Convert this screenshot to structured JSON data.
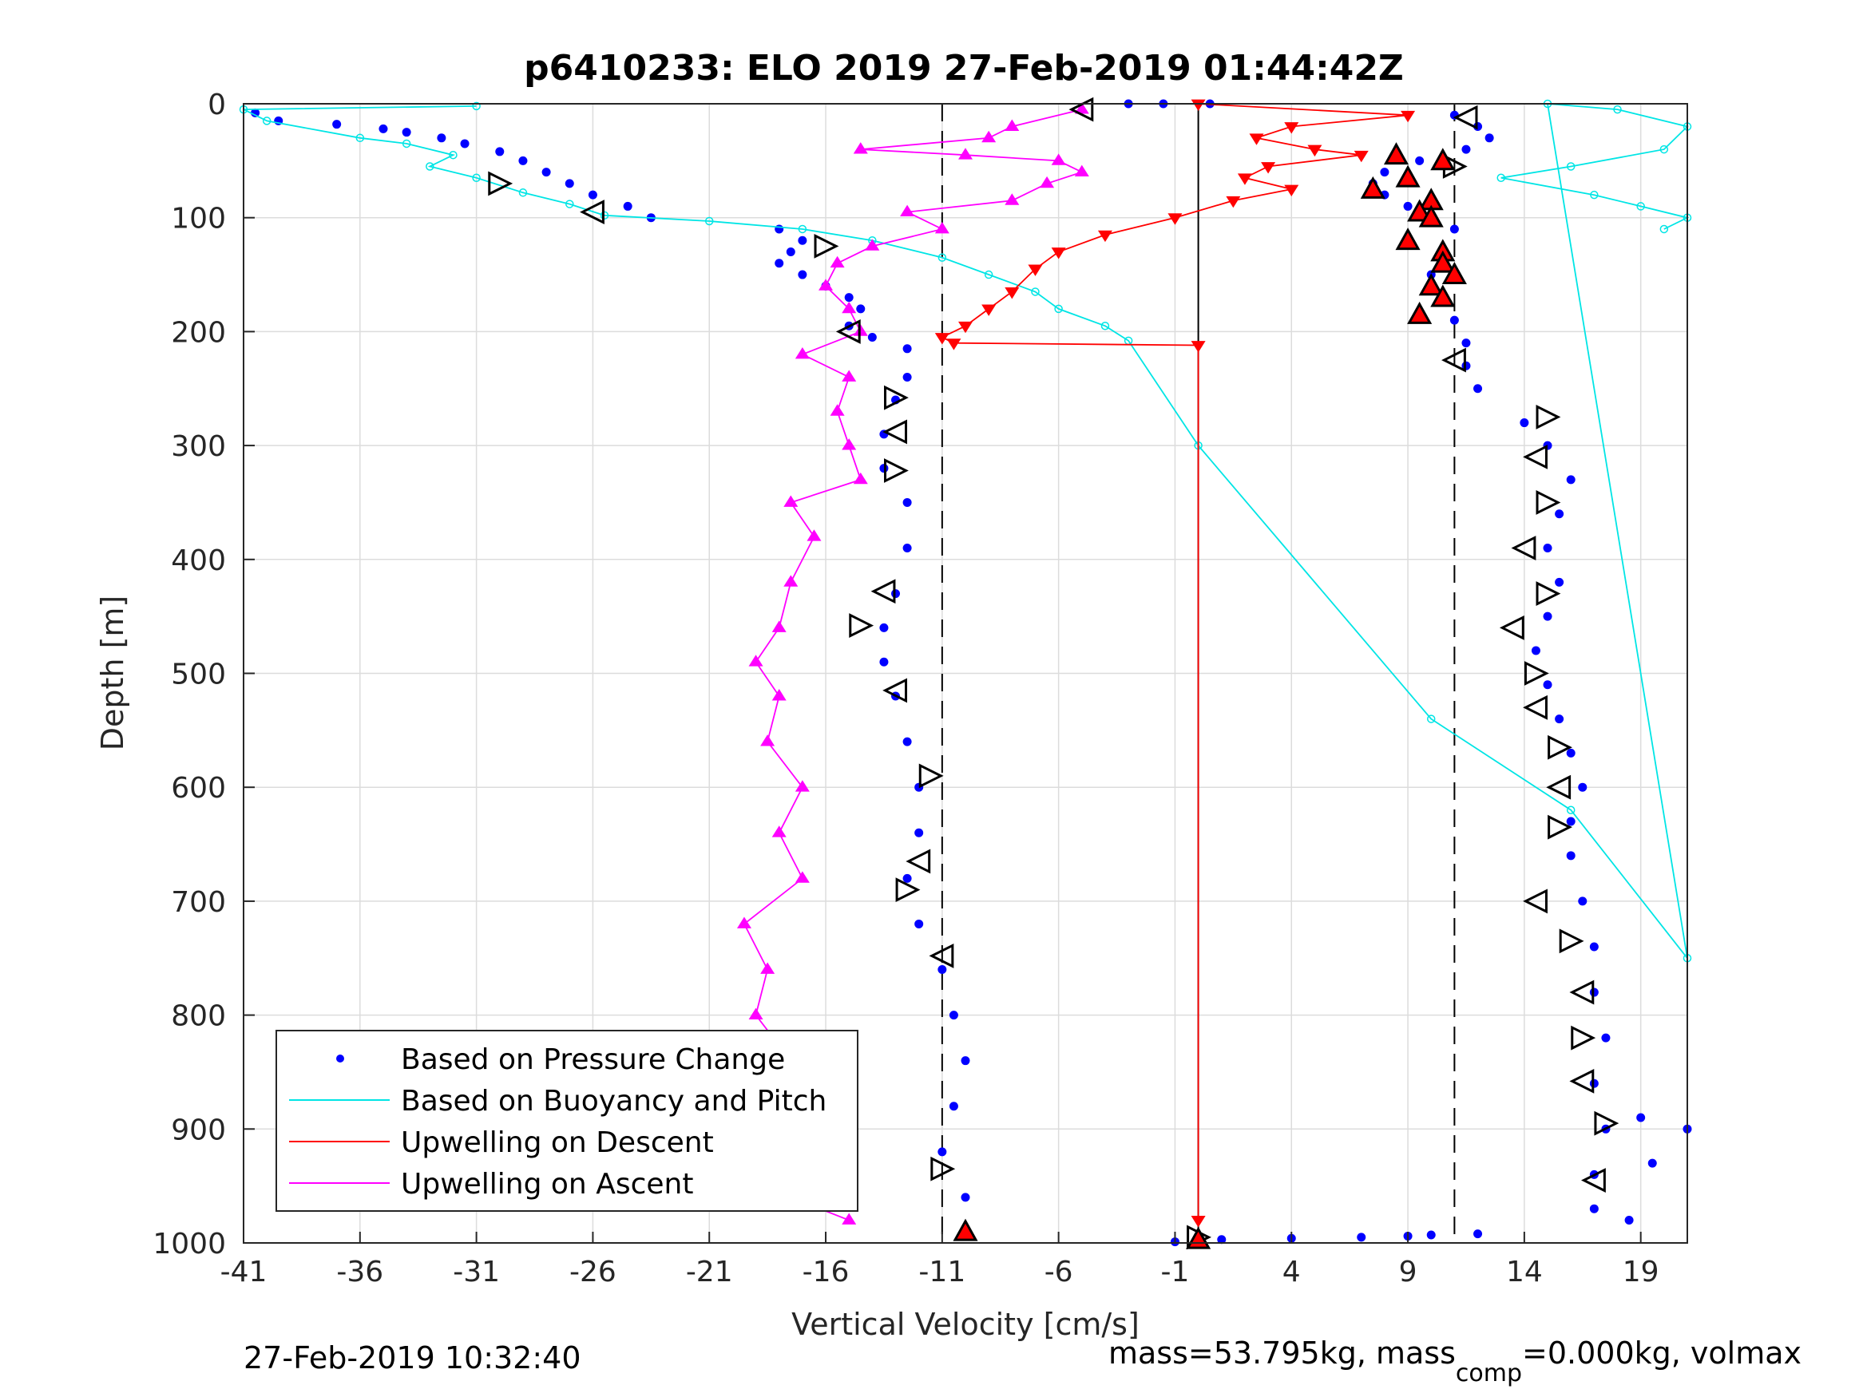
{
  "chart_data": {
    "type": "scatter",
    "title": "p6410233: ELO 2019 27-Feb-2019 01:44:42Z",
    "xlabel": "Vertical Velocity [cm/s]",
    "ylabel": "Depth [m]",
    "xlim": [
      -41,
      21
    ],
    "ylim": [
      0,
      1000
    ],
    "y_reversed": true,
    "xticks": [
      "-41",
      "-36",
      "-31",
      "-26",
      "-21",
      "-16",
      "-11",
      "-6",
      "-1",
      "4",
      "9",
      "14",
      "19"
    ],
    "xtick_values": [
      -41,
      -36,
      -31,
      -26,
      -21,
      -16,
      -11,
      -6,
      -1,
      4,
      9,
      14,
      19
    ],
    "yticks": [
      "0",
      "100",
      "200",
      "300",
      "400",
      "500",
      "600",
      "700",
      "800",
      "900",
      "1000"
    ],
    "ytick_values": [
      0,
      100,
      200,
      300,
      400,
      500,
      600,
      700,
      800,
      900,
      1000
    ],
    "grid": true,
    "legend_placement": "bottom-left",
    "reference_lines": [
      {
        "x": -11,
        "style": "dashed",
        "color": "#000000"
      },
      {
        "x": 11,
        "style": "dashed",
        "color": "#000000"
      },
      {
        "x": 0,
        "style": "solid",
        "color": "#000000"
      }
    ],
    "series": [
      {
        "name": "Based on Pressure Change",
        "style": "dots",
        "color": "#0000ff",
        "points": [
          [
            -40.5,
            8
          ],
          [
            -39.5,
            15
          ],
          [
            -37,
            18
          ],
          [
            -35,
            22
          ],
          [
            -34,
            25
          ],
          [
            -32.5,
            30
          ],
          [
            -31.5,
            35
          ],
          [
            -30,
            42
          ],
          [
            -29,
            50
          ],
          [
            -28,
            60
          ],
          [
            -27,
            70
          ],
          [
            -26,
            80
          ],
          [
            -24.5,
            90
          ],
          [
            -23.5,
            100
          ],
          [
            -18,
            110
          ],
          [
            -17,
            120
          ],
          [
            -17.5,
            130
          ],
          [
            -18,
            140
          ],
          [
            -17,
            150
          ],
          [
            -16,
            160
          ],
          [
            -15,
            170
          ],
          [
            -14.5,
            180
          ],
          [
            -15,
            195
          ],
          [
            -14,
            205
          ],
          [
            -12.5,
            215
          ],
          [
            -12.5,
            240
          ],
          [
            -13,
            260
          ],
          [
            -13.5,
            290
          ],
          [
            -13.5,
            320
          ],
          [
            -12.5,
            350
          ],
          [
            -12.5,
            390
          ],
          [
            -13,
            430
          ],
          [
            -13.5,
            460
          ],
          [
            -13.5,
            490
          ],
          [
            -13,
            520
          ],
          [
            -12.5,
            560
          ],
          [
            -12,
            600
          ],
          [
            -12,
            640
          ],
          [
            -12.5,
            680
          ],
          [
            -12,
            720
          ],
          [
            -11,
            760
          ],
          [
            -10.5,
            800
          ],
          [
            -10,
            840
          ],
          [
            -10.5,
            880
          ],
          [
            -11,
            920
          ],
          [
            -10,
            960
          ],
          [
            -10,
            990
          ],
          [
            -3,
            0
          ],
          [
            -1.5,
            0
          ],
          [
            0.5,
            0
          ],
          [
            -1,
            999
          ],
          [
            0,
            998
          ],
          [
            1,
            997
          ],
          [
            4,
            996
          ],
          [
            7,
            995
          ],
          [
            9,
            994
          ],
          [
            10,
            993
          ],
          [
            12,
            992
          ],
          [
            11,
            10
          ],
          [
            12,
            20
          ],
          [
            12.5,
            30
          ],
          [
            11.5,
            40
          ],
          [
            9.5,
            50
          ],
          [
            8,
            60
          ],
          [
            7.5,
            70
          ],
          [
            8,
            80
          ],
          [
            9,
            90
          ],
          [
            10,
            100
          ],
          [
            11,
            110
          ],
          [
            10.5,
            130
          ],
          [
            10,
            150
          ],
          [
            10.5,
            170
          ],
          [
            11,
            190
          ],
          [
            11.5,
            210
          ],
          [
            11.5,
            230
          ],
          [
            12,
            250
          ],
          [
            14,
            280
          ],
          [
            15,
            300
          ],
          [
            16,
            330
          ],
          [
            15.5,
            360
          ],
          [
            15,
            390
          ],
          [
            15.5,
            420
          ],
          [
            15,
            450
          ],
          [
            14.5,
            480
          ],
          [
            15,
            510
          ],
          [
            15.5,
            540
          ],
          [
            16,
            570
          ],
          [
            16.5,
            600
          ],
          [
            16,
            630
          ],
          [
            16,
            660
          ],
          [
            16.5,
            700
          ],
          [
            17,
            740
          ],
          [
            17,
            780
          ],
          [
            17.5,
            820
          ],
          [
            17,
            860
          ],
          [
            17.5,
            900
          ],
          [
            17,
            940
          ],
          [
            17,
            970
          ],
          [
            19,
            890
          ],
          [
            19.5,
            930
          ],
          [
            18.5,
            980
          ],
          [
            21,
            900
          ]
        ]
      },
      {
        "name": "Based on Buoyancy and Pitch",
        "style": "line",
        "color": "#00e5e5",
        "points": [
          [
            -31,
            2
          ],
          [
            -41,
            5
          ],
          [
            -40,
            15
          ],
          [
            -36,
            30
          ],
          [
            -34,
            35
          ],
          [
            -32,
            45
          ],
          [
            -33,
            55
          ],
          [
            -31,
            65
          ],
          [
            -29,
            78
          ],
          [
            -27,
            88
          ],
          [
            -25.5,
            98
          ],
          [
            -21,
            103
          ],
          [
            -17,
            110
          ],
          [
            -14,
            120
          ],
          [
            -11,
            135
          ],
          [
            -9,
            150
          ],
          [
            -7,
            165
          ],
          [
            -6,
            180
          ],
          [
            -4,
            195
          ],
          [
            -3,
            208
          ],
          [
            0,
            300
          ],
          [
            10,
            540
          ],
          [
            16,
            620
          ],
          [
            21,
            750
          ],
          [
            15,
            0
          ],
          [
            18,
            5
          ],
          [
            21,
            20
          ],
          [
            20,
            40
          ],
          [
            16,
            55
          ],
          [
            13,
            65
          ],
          [
            17,
            80
          ],
          [
            19,
            90
          ],
          [
            21,
            100
          ],
          [
            20,
            110
          ]
        ]
      },
      {
        "name": "Upwelling on Descent",
        "style": "line-triangle-down",
        "color": "#ff0000",
        "points": [
          [
            0,
            0
          ],
          [
            9,
            10
          ],
          [
            4,
            20
          ],
          [
            2.5,
            30
          ],
          [
            5,
            40
          ],
          [
            7,
            45
          ],
          [
            3,
            55
          ],
          [
            2,
            65
          ],
          [
            4,
            75
          ],
          [
            1.5,
            85
          ],
          [
            -1,
            100
          ],
          [
            -4,
            115
          ],
          [
            -6,
            130
          ],
          [
            -7,
            145
          ],
          [
            -8,
            165
          ],
          [
            -9,
            180
          ],
          [
            -10,
            195
          ],
          [
            -11,
            205
          ],
          [
            -10.5,
            210
          ],
          [
            0,
            212
          ],
          [
            0,
            980
          ]
        ]
      },
      {
        "name": "Upwelling on Ascent",
        "style": "line-triangle-up",
        "color": "#ff00ff",
        "points": [
          [
            -5,
            5
          ],
          [
            -8,
            20
          ],
          [
            -9,
            30
          ],
          [
            -14.5,
            40
          ],
          [
            -10,
            45
          ],
          [
            -6,
            50
          ],
          [
            -5,
            60
          ],
          [
            -6.5,
            70
          ],
          [
            -8,
            85
          ],
          [
            -12.5,
            95
          ],
          [
            -11,
            110
          ],
          [
            -14,
            125
          ],
          [
            -15.5,
            140
          ],
          [
            -16,
            160
          ],
          [
            -15,
            180
          ],
          [
            -14.5,
            200
          ],
          [
            -17,
            220
          ],
          [
            -15,
            240
          ],
          [
            -15.5,
            270
          ],
          [
            -15,
            300
          ],
          [
            -14.5,
            330
          ],
          [
            -17.5,
            350
          ],
          [
            -16.5,
            380
          ],
          [
            -17.5,
            420
          ],
          [
            -18,
            460
          ],
          [
            -19,
            490
          ],
          [
            -18,
            520
          ],
          [
            -18.5,
            560
          ],
          [
            -17,
            600
          ],
          [
            -18,
            640
          ],
          [
            -17,
            680
          ],
          [
            -19.5,
            720
          ],
          [
            -18.5,
            760
          ],
          [
            -19,
            800
          ],
          [
            -17.5,
            840
          ],
          [
            -17,
            880
          ],
          [
            -17.5,
            920
          ],
          [
            -17.5,
            960
          ],
          [
            -15,
            980
          ]
        ]
      }
    ],
    "markers": {
      "open_triangles": [
        [
          -5,
          5
        ],
        [
          -30,
          70
        ],
        [
          -26,
          95
        ],
        [
          -16,
          125
        ],
        [
          -15,
          200
        ],
        [
          -13,
          258
        ],
        [
          -13,
          288
        ],
        [
          -13,
          322
        ],
        [
          -13.5,
          428
        ],
        [
          -14.5,
          458
        ],
        [
          -13,
          515
        ],
        [
          -11.5,
          590
        ],
        [
          -12,
          665
        ],
        [
          -12.5,
          690
        ],
        [
          -11,
          748
        ],
        [
          -11,
          935
        ],
        [
          11.5,
          12
        ],
        [
          11,
          55
        ],
        [
          11,
          225
        ],
        [
          15,
          275
        ],
        [
          14.5,
          310
        ],
        [
          15,
          350
        ],
        [
          14,
          390
        ],
        [
          15,
          430
        ],
        [
          13.5,
          460
        ],
        [
          14.5,
          500
        ],
        [
          14.5,
          530
        ],
        [
          15.5,
          565
        ],
        [
          15.5,
          600
        ],
        [
          15.5,
          635
        ],
        [
          14.5,
          700
        ],
        [
          16,
          735
        ],
        [
          16.5,
          780
        ],
        [
          16.5,
          820
        ],
        [
          16.5,
          858
        ],
        [
          17.5,
          895
        ],
        [
          17,
          945
        ],
        [
          0,
          995
        ]
      ],
      "filled_triangles": [
        [
          8.5,
          45
        ],
        [
          10.5,
          50
        ],
        [
          9,
          65
        ],
        [
          7.5,
          75
        ],
        [
          10,
          85
        ],
        [
          9.5,
          95
        ],
        [
          10,
          100
        ],
        [
          9,
          120
        ],
        [
          10.5,
          130
        ],
        [
          10.5,
          140
        ],
        [
          11,
          150
        ],
        [
          10,
          160
        ],
        [
          10.5,
          170
        ],
        [
          9.5,
          185
        ],
        [
          -10,
          990
        ],
        [
          0,
          997
        ]
      ]
    },
    "legend": [
      {
        "label": "Based on Pressure Change",
        "marker": "dot",
        "color": "#0000ff"
      },
      {
        "label": "Based on Buoyancy and Pitch",
        "marker": "line",
        "color": "#00e5e5"
      },
      {
        "label": "Upwelling on Descent",
        "marker": "line",
        "color": "#ff0000"
      },
      {
        "label": "Upwelling on Ascent",
        "marker": "line",
        "color": "#ff00ff"
      }
    ]
  },
  "footer": {
    "timestamp": "27-Feb-2019 10:32:40",
    "mass_text_a": "mass=53.795kg, mass",
    "mass_subscript": "comp",
    "mass_text_b": "=0.000kg, volmax"
  }
}
